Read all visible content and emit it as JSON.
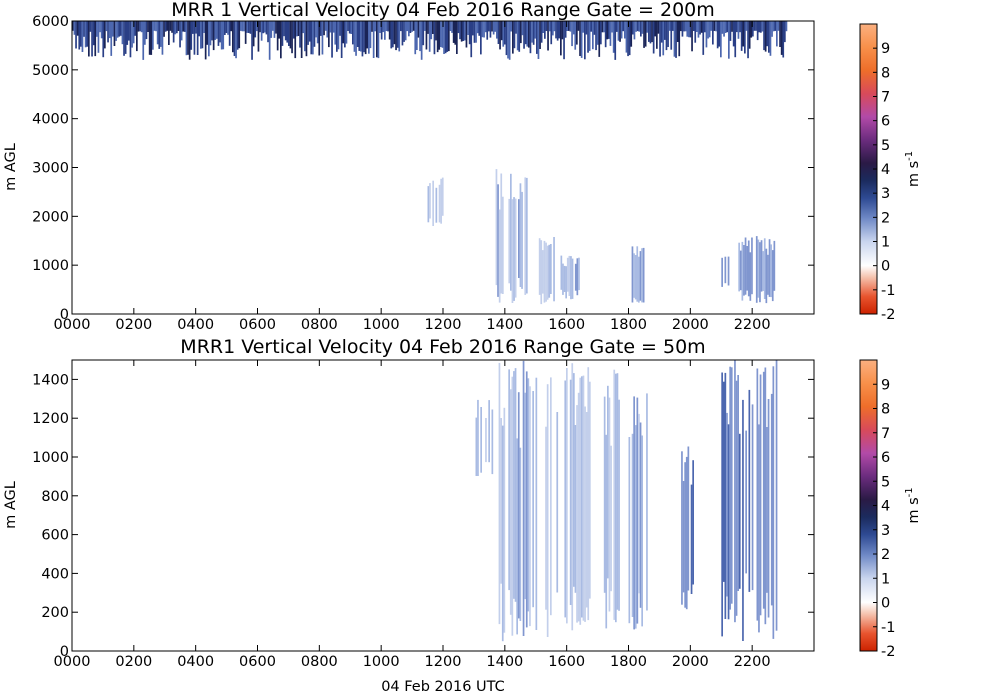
{
  "chart_data": [
    {
      "type": "heatmap",
      "title": "MRR 1 Vertical Velocity 04 Feb 2016 Range Gate = 200m",
      "xlabel": "",
      "ylabel": "m AGL",
      "xlim": [
        0,
        2400
      ],
      "ylim": [
        0,
        6000
      ],
      "x_ticks": [
        "0000",
        "0200",
        "0400",
        "0600",
        "0800",
        "1000",
        "1200",
        "1400",
        "1600",
        "1800",
        "2000",
        "2200"
      ],
      "x_tick_values": [
        0,
        200,
        400,
        600,
        800,
        1000,
        1200,
        1400,
        1600,
        1800,
        2000,
        2200
      ],
      "y_ticks": [
        "0",
        "1000",
        "2000",
        "3000",
        "4000",
        "5000",
        "6000"
      ],
      "y_tick_values": [
        0,
        1000,
        2000,
        3000,
        4000,
        5000,
        6000
      ],
      "colorbar": {
        "label": "m s",
        "label_sup": "-1",
        "ticks": [
          "-2",
          "-1",
          "0",
          "1",
          "2",
          "3",
          "4",
          "5",
          "6",
          "7",
          "8",
          "9"
        ],
        "range": [
          -2,
          10
        ]
      },
      "regions": [
        {
          "t0": 0,
          "t1": 2310,
          "z0": 5200,
          "z1": 6000,
          "v": 2.8,
          "note": "dense noisy band near top of range"
        },
        {
          "t0": 1150,
          "t1": 1200,
          "z0": 1800,
          "z1": 2800,
          "v": 1.2
        },
        {
          "t0": 1370,
          "t1": 1470,
          "z0": 200,
          "z1": 3000,
          "v": 1.3
        },
        {
          "t0": 1510,
          "t1": 1560,
          "z0": 200,
          "z1": 1600,
          "v": 1.3
        },
        {
          "t0": 1580,
          "t1": 1640,
          "z0": 300,
          "z1": 1200,
          "v": 1.3
        },
        {
          "t0": 1810,
          "t1": 1850,
          "z0": 200,
          "z1": 1400,
          "v": 1.4
        },
        {
          "t0": 2100,
          "t1": 2130,
          "z0": 500,
          "z1": 1300,
          "v": 1.6
        },
        {
          "t0": 2150,
          "t1": 2280,
          "z0": 200,
          "z1": 1600,
          "v": 1.6
        }
      ]
    },
    {
      "type": "heatmap",
      "title": "MRR1 Vertical Velocity 04 Feb 2016 Range Gate = 50m",
      "xlabel": "04 Feb 2016 UTC",
      "ylabel": "m AGL",
      "xlim": [
        0,
        2400
      ],
      "ylim": [
        0,
        1500
      ],
      "x_ticks": [
        "0000",
        "0200",
        "0400",
        "0600",
        "0800",
        "1000",
        "1200",
        "1400",
        "1600",
        "1800",
        "2000",
        "2200"
      ],
      "x_tick_values": [
        0,
        200,
        400,
        600,
        800,
        1000,
        1200,
        1400,
        1600,
        1800,
        2000,
        2200
      ],
      "y_ticks": [
        "0",
        "200",
        "400",
        "600",
        "800",
        "1000",
        "1200",
        "1400"
      ],
      "y_tick_values": [
        0,
        200,
        400,
        600,
        800,
        1000,
        1200,
        1400
      ],
      "colorbar": {
        "label": "m s",
        "label_sup": "-1",
        "ticks": [
          "-2",
          "-1",
          "0",
          "1",
          "2",
          "3",
          "4",
          "5",
          "6",
          "7",
          "8",
          "9"
        ],
        "range": [
          -2,
          10
        ]
      },
      "regions": [
        {
          "t0": 1300,
          "t1": 1360,
          "z0": 900,
          "z1": 1300,
          "v": 1.2
        },
        {
          "t0": 1380,
          "t1": 1500,
          "z0": 50,
          "z1": 1500,
          "v": 1.3
        },
        {
          "t0": 1510,
          "t1": 1600,
          "z0": 50,
          "z1": 1500,
          "v": 1.2
        },
        {
          "t0": 1610,
          "t1": 1680,
          "z0": 100,
          "z1": 1500,
          "v": 1.2
        },
        {
          "t0": 1720,
          "t1": 1780,
          "z0": 100,
          "z1": 1450,
          "v": 1.3
        },
        {
          "t0": 1800,
          "t1": 1860,
          "z0": 50,
          "z1": 1400,
          "v": 1.3
        },
        {
          "t0": 1970,
          "t1": 2010,
          "z0": 200,
          "z1": 1100,
          "v": 1.8
        },
        {
          "t0": 2100,
          "t1": 2280,
          "z0": 50,
          "z1": 1500,
          "v": 1.8
        }
      ]
    }
  ]
}
